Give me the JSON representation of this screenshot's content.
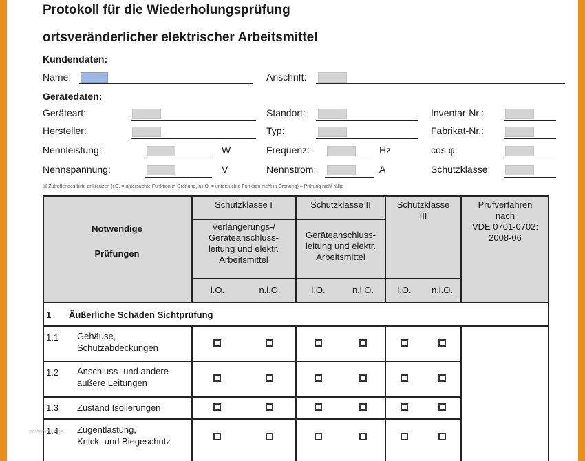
{
  "document": {
    "title_line1": "Protokoll für die Wiederholungsprüfung",
    "title_line2": "ortsveränderlicher elektrischer Arbeitsmittel",
    "note": "☒ Zutreffendes bitte ankreuzen (i.O. = untersuchte Funktion in Ordnung, n.i.O. = untersuchte Funktion nicht in Ordnung) – Prüfung nicht fällig",
    "watermark": "www.vorlage...",
    "colors": {
      "frame": "#e8901c",
      "header_fill": "#d9d9d9",
      "name_field": "#9bb8e6",
      "field_fill": "#d4d4d4"
    }
  },
  "customer": {
    "heading": "Kundendaten:",
    "name_label": "Name:",
    "address_label": "Anschrift:"
  },
  "device": {
    "heading": "Gerätedaten:",
    "type_label": "Geräteart:",
    "location_label": "Standort:",
    "inventory_label": "Inventar-Nr.:",
    "manufacturer_label": "Hersteller:",
    "model_label": "Typ:",
    "serial_label": "Fabrikat-Nr.:",
    "power_label": "Nennleistung:",
    "power_unit": "W",
    "frequency_label": "Frequenz:",
    "frequency_unit": "Hz",
    "cos_label": "cos φ:",
    "voltage_label": "Nennspannung:",
    "voltage_unit": "V",
    "current_label": "Nennstrom:",
    "current_unit": "A",
    "protection_label": "Schutzklasse:"
  },
  "table": {
    "header_required_1": "Notwendige",
    "header_required_2": "Prüfungen",
    "class1": "Schutzklasse I",
    "class2": "Schutzklasse II",
    "class3_1": "Schutzklasse",
    "class3_2": "III",
    "proc_1": "Prüfverfahren",
    "proc_2": "nach",
    "proc_3": "VDE 0701-0702:",
    "proc_4": "2008-06",
    "c1_sub_1": "Verlängerungs-/",
    "c1_sub_2": "Geräteanschluss-",
    "c1_sub_3": "leitung und elektr.",
    "c1_sub_4": "Arbeitsmittel",
    "c2_sub_1": "Geräteanschluss-",
    "c2_sub_2": "leitung und elektr.",
    "c2_sub_3": "Arbeitsmittel",
    "ok": "i.O.",
    "not_ok": "n.i.O.",
    "section_no": "1",
    "section_title": "Äußerliche Schäden Sichtprüfung",
    "rows": [
      {
        "no": "1.1",
        "line1": "Gehäuse,",
        "line2": "Schutzabdeckungen"
      },
      {
        "no": "1.2",
        "line1": "Anschluss- und andere",
        "line2": "äußere Leitungen"
      },
      {
        "no": "1.3",
        "line1": "Zustand Isolierungen"
      },
      {
        "no": "1.4",
        "line1": "Zugentlastung,",
        "line2": "Knick- und Biegeschutz"
      }
    ]
  }
}
